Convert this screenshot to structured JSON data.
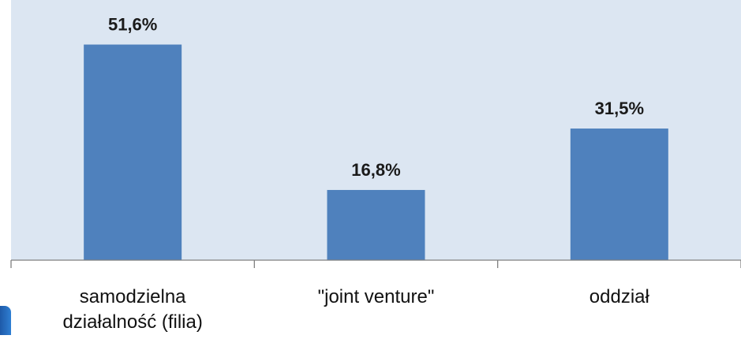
{
  "chart_data": {
    "type": "bar",
    "categories": [
      "samodzielna\ndziałalność (filia)",
      "\"joint venture\"",
      "oddział"
    ],
    "values": [
      51.6,
      16.8,
      31.5
    ],
    "data_labels": [
      "51,6%",
      "16,8%",
      "31,5%"
    ],
    "title": "",
    "xlabel": "",
    "ylabel": "",
    "ylim": [
      0,
      60
    ],
    "grid": false,
    "legend": "none",
    "colors": {
      "bar": "#4f81bd",
      "plot_background": "#dce6f2"
    }
  }
}
